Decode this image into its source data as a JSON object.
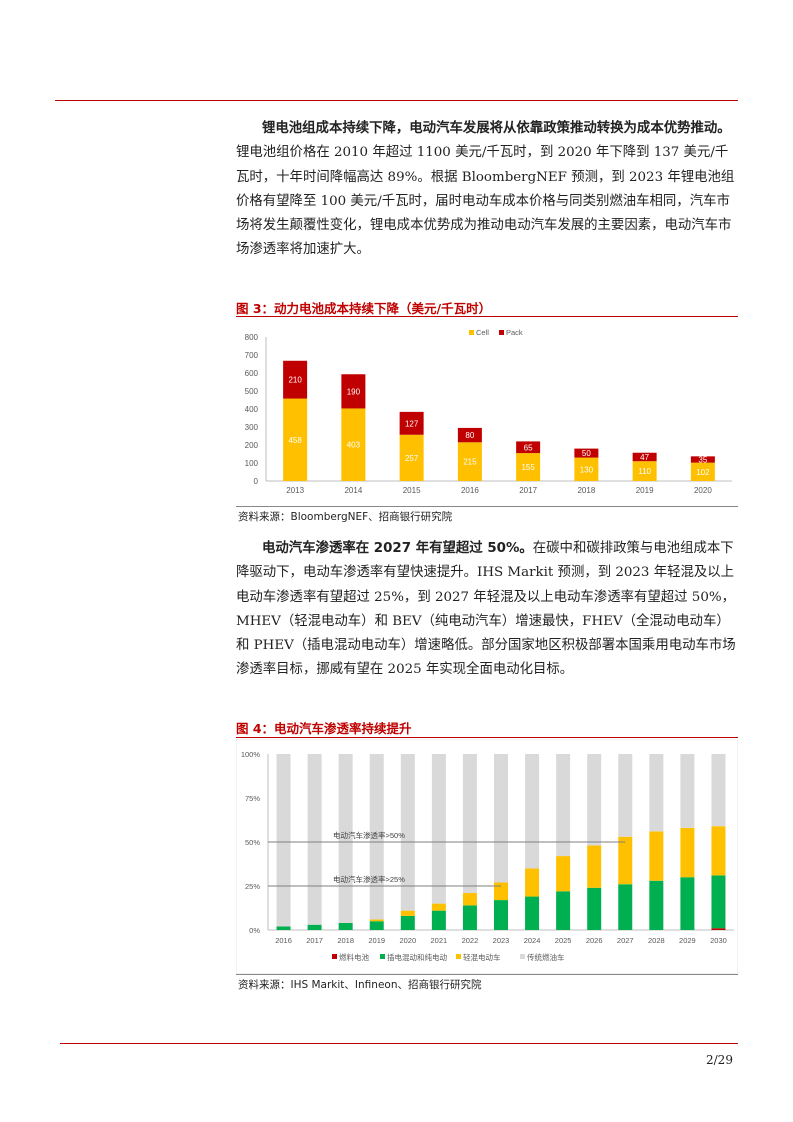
{
  "para1": {
    "lead": "锂电池组成本持续下降，电动汽车发展将从依靠政策推动转换为成本优势推动。",
    "body": "锂电池组价格在 2010 年超过 1100 美元/千瓦时，到 2020 年下降到 137 美元/千瓦时，十年时间降幅高达 89%。根据 BloombergNEF 预测，到 2023 年锂电池组价格有望降至 100 美元/千瓦时，届时电动车成本价格与同类别燃油车相同，汽车市场将发生颠覆性变化，锂电成本优势成为推动电动汽车发展的主要因素，电动汽车市场渗透率将加速扩大。"
  },
  "fig3": {
    "title": "图 3：动力电池成本持续下降（美元/千瓦时）",
    "source": "资料来源：BloombergNEF、招商银行研究院"
  },
  "para2": {
    "lead": "电动汽车渗透率在 2027 年有望超过 50%。",
    "body": "在碳中和碳排政策与电池组成本下降驱动下，电动车渗透率有望快速提升。IHS Markit 预测，到 2023 年轻混及以上电动车渗透率有望超过 25%，到 2027 年轻混及以上电动车渗透率有望超过 50%，MHEV（轻混电动车）和 BEV（纯电动汽车）增速最快，FHEV（全混动电动车）和 PHEV（插电混动电动车）增速略低。部分国家地区积极部署本国乘用电动车市场渗透率目标，挪威有望在 2025 年实现全面电动化目标。"
  },
  "fig4": {
    "title": "图 4：电动汽车渗透率持续提升",
    "source": "资料来源：IHS Markit、Infineon、招商银行研究院"
  },
  "page_number": "2/29",
  "chart_data": [
    {
      "type": "bar",
      "stacked": true,
      "categories": [
        "2013",
        "2014",
        "2015",
        "2016",
        "2017",
        "2018",
        "2019",
        "2020"
      ],
      "series": [
        {
          "name": "Cell",
          "values": [
            458,
            403,
            257,
            215,
            155,
            130,
            110,
            102
          ],
          "color": "#ffc000"
        },
        {
          "name": "Pack",
          "values": [
            210,
            190,
            127,
            80,
            65,
            50,
            47,
            35
          ],
          "color": "#c00000"
        }
      ],
      "ylim": [
        0,
        800
      ],
      "yticks": [
        0,
        100,
        200,
        300,
        400,
        500,
        600,
        700,
        800
      ],
      "legend": "top-right",
      "grid": false
    },
    {
      "type": "bar",
      "stacked": true,
      "categories": [
        "2016",
        "2017",
        "2018",
        "2019",
        "2020",
        "2021",
        "2022",
        "2023",
        "2024",
        "2025",
        "2026",
        "2027",
        "2028",
        "2029",
        "2030"
      ],
      "series": [
        {
          "name": "燃料电池",
          "values": [
            0,
            0,
            0,
            0,
            0,
            0,
            0,
            0,
            0,
            0,
            0,
            0,
            0,
            0,
            1
          ],
          "color": "#c00000"
        },
        {
          "name": "插电混动和纯电动",
          "values": [
            2,
            3,
            4,
            5,
            8,
            11,
            14,
            17,
            19,
            22,
            24,
            26,
            28,
            30,
            30
          ],
          "color": "#00b050"
        },
        {
          "name": "轻混电动车",
          "values": [
            0,
            0,
            0,
            1,
            3,
            4,
            7,
            10,
            16,
            20,
            24,
            27,
            28,
            28,
            28
          ],
          "color": "#ffc000"
        },
        {
          "name": "传统燃油车",
          "values": [
            98,
            97,
            96,
            94,
            89,
            85,
            79,
            73,
            65,
            58,
            52,
            47,
            44,
            42,
            41
          ],
          "color": "#d9d9d9"
        }
      ],
      "ylim": [
        0,
        100
      ],
      "ytick_labels": [
        "0%",
        "25%",
        "50%",
        "75%",
        "100%"
      ],
      "ytick_values": [
        0,
        25,
        50,
        75,
        100
      ],
      "reference_lines": [
        {
          "y": 50,
          "label": "电动汽车渗透率>50%"
        },
        {
          "y": 25,
          "label": "电动汽车渗透率>25%"
        }
      ],
      "legend": "bottom",
      "grid": false
    }
  ]
}
